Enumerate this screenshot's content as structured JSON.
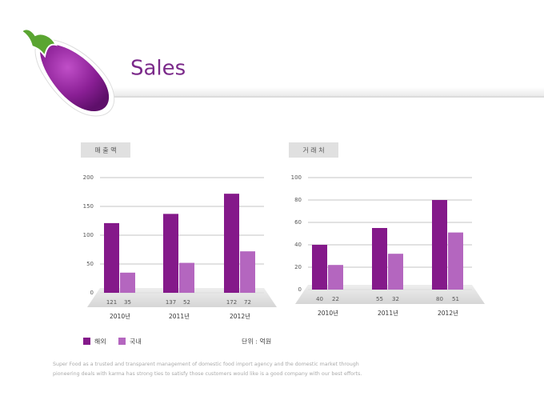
{
  "title": "Sales",
  "chart_data": [
    {
      "type": "bar",
      "title": "매 출 액",
      "categories": [
        "2010년",
        "2011년",
        "2012년"
      ],
      "series": [
        {
          "name": "해외",
          "color": "#84198a",
          "values": [
            121,
            137,
            172
          ]
        },
        {
          "name": "국내",
          "color": "#b466bf",
          "values": [
            35,
            52,
            72
          ]
        }
      ],
      "ylim": [
        0,
        200
      ],
      "yticks": [
        0,
        50,
        100,
        150,
        200
      ],
      "grid": true
    },
    {
      "type": "bar",
      "title": "거 래 처",
      "categories": [
        "2010년",
        "2011년",
        "2012년"
      ],
      "series": [
        {
          "color": "#84198a",
          "values": [
            40,
            55,
            80
          ]
        },
        {
          "color": "#b466bf",
          "values": [
            22,
            32,
            51
          ]
        }
      ],
      "ylim": [
        0,
        100
      ],
      "yticks": [
        0,
        20,
        40,
        60,
        80,
        100
      ],
      "grid": true
    }
  ],
  "unit_note": "단위 : 억원",
  "footer": [
    "Super Food as a trusted and transparent management of domestic food import agency and the domestic market through",
    "pioneering deals with karma has strong ties to satisfy those customers would like is a good company with our best efforts."
  ]
}
